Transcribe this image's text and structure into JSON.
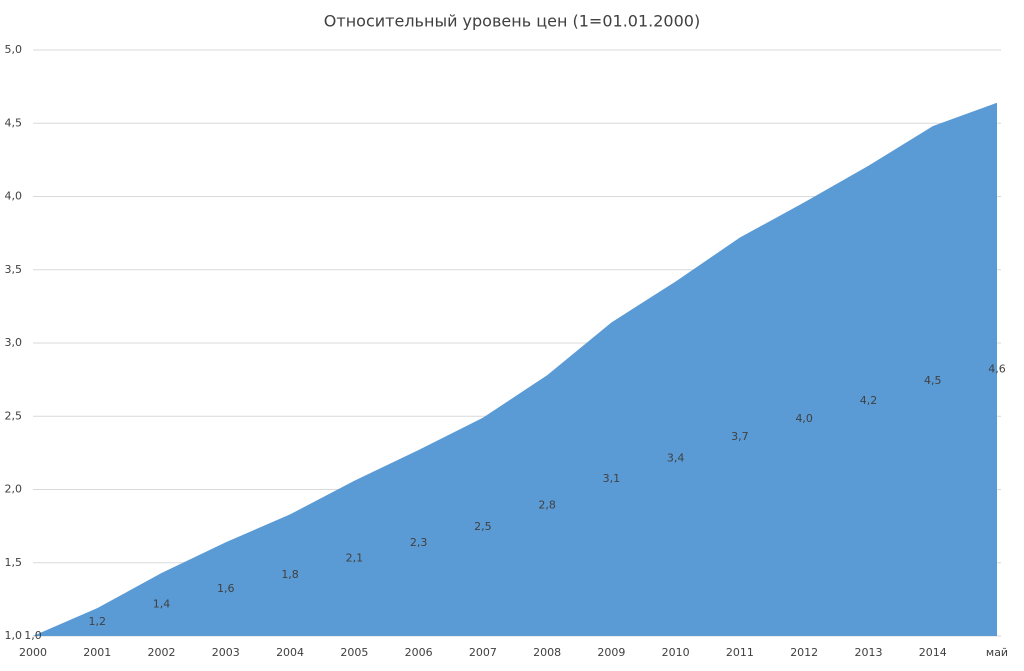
{
  "chart_data": {
    "type": "area",
    "title": "Относительный уровень цен (1=01.01.2000)",
    "categories": [
      "2000",
      "2001",
      "2002",
      "2003",
      "2004",
      "2005",
      "2006",
      "2007",
      "2008",
      "2009",
      "2010",
      "2011",
      "2012",
      "2013",
      "2014",
      "май"
    ],
    "values": [
      1.0,
      1.19,
      1.43,
      1.64,
      1.83,
      2.06,
      2.27,
      2.49,
      2.78,
      3.14,
      3.42,
      3.72,
      3.96,
      4.21,
      4.48,
      4.64
    ],
    "value_labels": [
      "1,0",
      "1,2",
      "1,4",
      "1,6",
      "1,8",
      "2,1",
      "2,3",
      "2,5",
      "2,8",
      "3,1",
      "3,4",
      "3,7",
      "4,0",
      "4,2",
      "4,5",
      "4,6"
    ],
    "color": "#5b9bd5",
    "ylim": [
      1,
      5
    ],
    "yticks": [
      {
        "value": 1,
        "label": "1,0"
      },
      {
        "value": 1.5,
        "label": "1,5"
      },
      {
        "value": 2,
        "label": "2,0"
      },
      {
        "value": 2.5,
        "label": "2,5"
      },
      {
        "value": 3,
        "label": "3,0"
      },
      {
        "value": 3.5,
        "label": "3,5"
      },
      {
        "value": 4,
        "label": "4,0"
      },
      {
        "value": 4.5,
        "label": "4,5"
      },
      {
        "value": 5,
        "label": "5,0"
      }
    ],
    "grid": true
  }
}
